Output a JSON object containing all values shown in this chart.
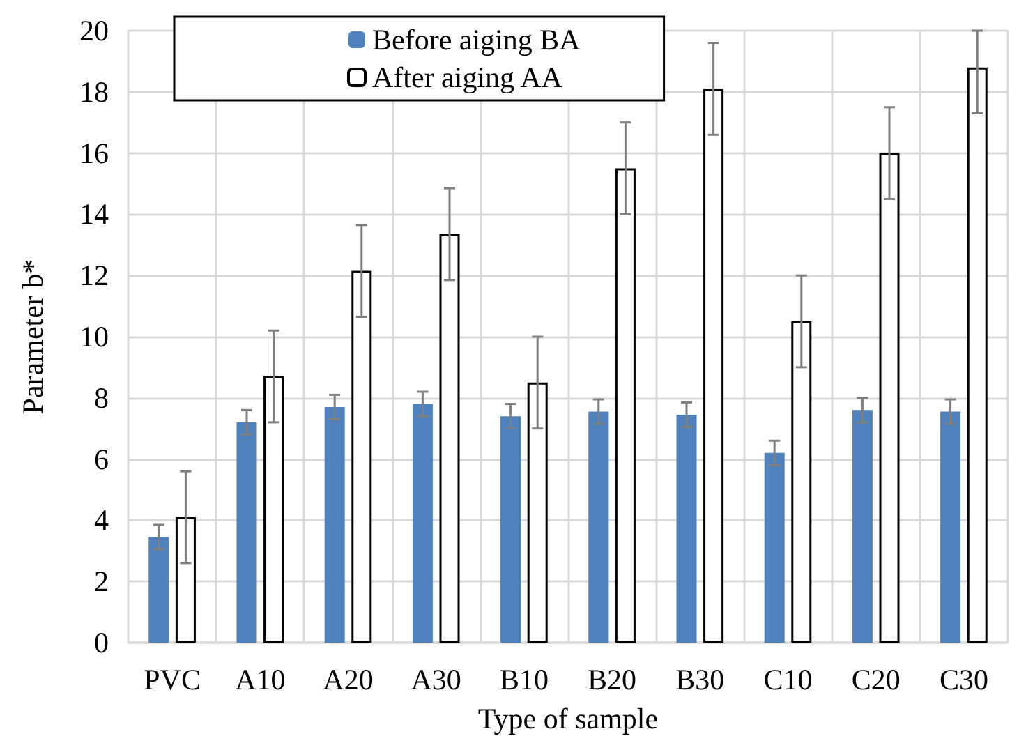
{
  "chart_data": {
    "type": "bar",
    "xlabel": "Type of sample",
    "ylabel": "Parameter b*",
    "categories": [
      "PVC",
      "A10",
      "A20",
      "A30",
      "B10",
      "B20",
      "B30",
      "C10",
      "C20",
      "C30"
    ],
    "series": [
      {
        "name": "Before aiging BA",
        "color": "#4f81bd",
        "values": [
          3.45,
          7.2,
          7.7,
          7.8,
          7.4,
          7.55,
          7.45,
          6.2,
          7.6,
          7.55
        ],
        "errors": [
          0.4,
          0.4,
          0.4,
          0.4,
          0.4,
          0.4,
          0.4,
          0.4,
          0.4,
          0.4
        ]
      },
      {
        "name": "After aiging AA",
        "color": "#ffffff",
        "values": [
          4.1,
          8.7,
          12.15,
          13.35,
          8.5,
          15.5,
          18.1,
          10.5,
          16,
          18.8
        ],
        "errors": [
          1.5,
          1.5,
          1.5,
          1.5,
          1.5,
          1.5,
          1.5,
          1.5,
          1.5,
          [
            17.3,
            20
          ]
        ]
      }
    ],
    "ylim": [
      0,
      20
    ],
    "yticks": [
      0,
      2,
      4,
      6,
      8,
      10,
      12,
      14,
      16,
      18,
      20
    ],
    "grid": true,
    "legend": "top left"
  }
}
